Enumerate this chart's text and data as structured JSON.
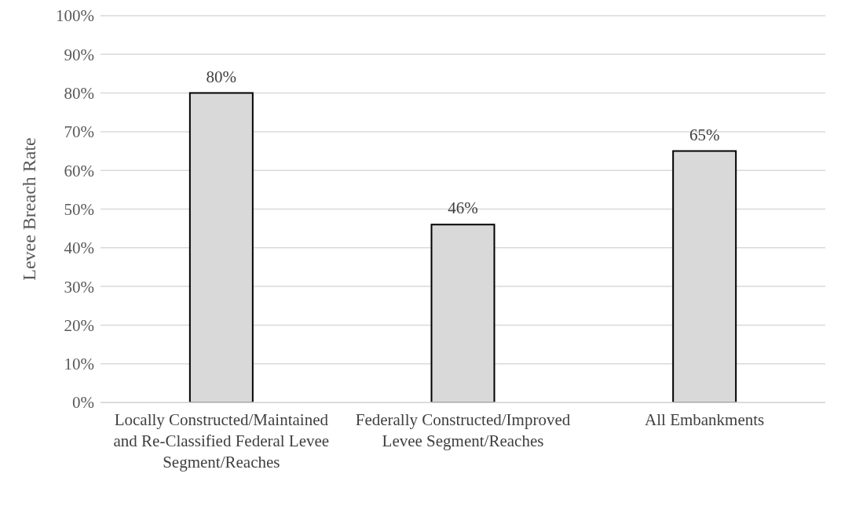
{
  "chart_data": {
    "type": "bar",
    "ylabel": "Levee Breach Rate",
    "categories": [
      "Locally Constructed/Maintained and Re-Classified Federal Levee Segment/Reaches",
      "Federally Constructed/Improved Levee Segment/Reaches",
      "All Embankments"
    ],
    "values": [
      80,
      46,
      65
    ],
    "color": "#d9d9d9",
    "value_labels": [
      "80%",
      "46%",
      "65%"
    ],
    "ylim": [
      0,
      100
    ],
    "yticks": [
      {
        "value": 0,
        "label": "0%"
      },
      {
        "value": 10,
        "label": "10%"
      },
      {
        "value": 20,
        "label": "20%"
      },
      {
        "value": 30,
        "label": "30%"
      },
      {
        "value": 40,
        "label": "40%"
      },
      {
        "value": 50,
        "label": "50%"
      },
      {
        "value": 60,
        "label": "60%"
      },
      {
        "value": 70,
        "label": "70%"
      },
      {
        "value": 80,
        "label": "80%"
      },
      {
        "value": 90,
        "label": "90%"
      },
      {
        "value": 100,
        "label": "100%"
      }
    ],
    "grid": "y",
    "legend": false
  }
}
